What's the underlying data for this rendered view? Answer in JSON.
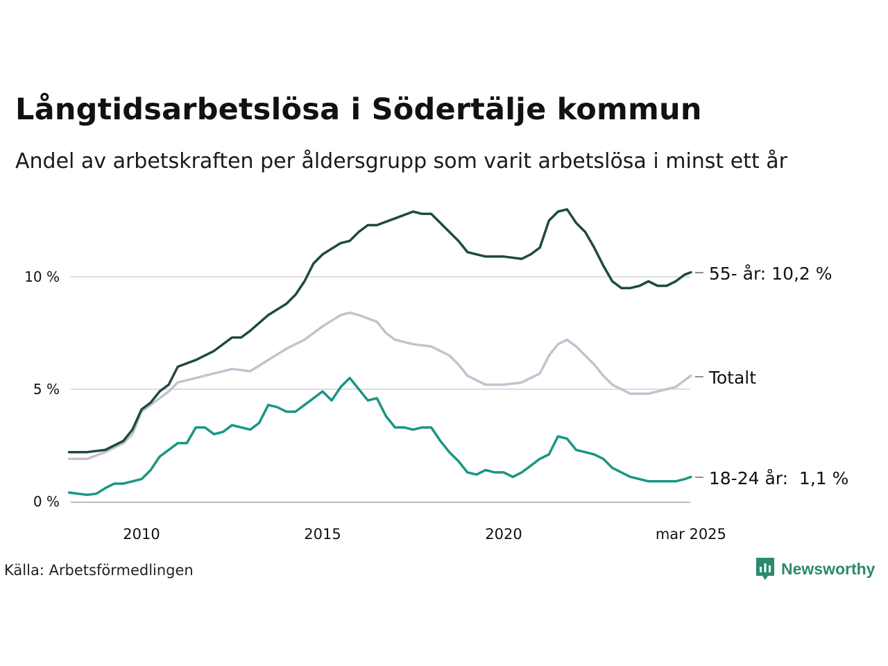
{
  "title": "Långtidsarbetslösa i Södertälje kommun",
  "subtitle": "Andel av arbetskraften per åldersgrupp som varit arbetslösa i minst ett år",
  "source": "Källa: Arbetsförmedlingen",
  "brand": "Newsworthy",
  "chart_data": {
    "type": "line",
    "x_ticks": [
      "2010",
      "2015",
      "2020",
      "mar 2025"
    ],
    "y_ticks": [
      "0 %",
      "5 %",
      "10 %"
    ],
    "ylim": [
      0,
      13.5
    ],
    "xlim": [
      2008.0,
      2025.17
    ],
    "grid": true,
    "series": [
      {
        "name": "55- år",
        "end_label": "55- år: 10,2 %",
        "color": "#1f4a40",
        "points": [
          [
            2008.0,
            2.2
          ],
          [
            2008.5,
            2.2
          ],
          [
            2009.0,
            2.3
          ],
          [
            2009.5,
            2.7
          ],
          [
            2009.75,
            3.2
          ],
          [
            2010.0,
            4.1
          ],
          [
            2010.25,
            4.4
          ],
          [
            2010.5,
            4.9
          ],
          [
            2010.75,
            5.2
          ],
          [
            2011.0,
            6.0
          ],
          [
            2011.5,
            6.3
          ],
          [
            2012.0,
            6.7
          ],
          [
            2012.5,
            7.3
          ],
          [
            2012.75,
            7.3
          ],
          [
            2013.0,
            7.6
          ],
          [
            2013.5,
            8.3
          ],
          [
            2014.0,
            8.8
          ],
          [
            2014.25,
            9.2
          ],
          [
            2014.5,
            9.8
          ],
          [
            2014.75,
            10.6
          ],
          [
            2015.0,
            11.0
          ],
          [
            2015.5,
            11.5
          ],
          [
            2015.75,
            11.6
          ],
          [
            2016.0,
            12.0
          ],
          [
            2016.25,
            12.3
          ],
          [
            2016.5,
            12.3
          ],
          [
            2017.0,
            12.6
          ],
          [
            2017.5,
            12.9
          ],
          [
            2017.75,
            12.8
          ],
          [
            2018.0,
            12.8
          ],
          [
            2018.5,
            12.0
          ],
          [
            2018.75,
            11.6
          ],
          [
            2019.0,
            11.1
          ],
          [
            2019.5,
            10.9
          ],
          [
            2020.0,
            10.9
          ],
          [
            2020.5,
            10.8
          ],
          [
            2020.75,
            11.0
          ],
          [
            2021.0,
            11.3
          ],
          [
            2021.25,
            12.5
          ],
          [
            2021.5,
            12.9
          ],
          [
            2021.75,
            13.0
          ],
          [
            2022.0,
            12.4
          ],
          [
            2022.25,
            12.0
          ],
          [
            2022.5,
            11.3
          ],
          [
            2022.75,
            10.5
          ],
          [
            2023.0,
            9.8
          ],
          [
            2023.25,
            9.5
          ],
          [
            2023.5,
            9.5
          ],
          [
            2023.75,
            9.6
          ],
          [
            2024.0,
            9.8
          ],
          [
            2024.25,
            9.6
          ],
          [
            2024.5,
            9.6
          ],
          [
            2024.75,
            9.8
          ],
          [
            2025.0,
            10.1
          ],
          [
            2025.17,
            10.2
          ]
        ]
      },
      {
        "name": "Totalt",
        "end_label": "Totalt",
        "color": "#c3c2cf",
        "points": [
          [
            2008.0,
            1.9
          ],
          [
            2008.5,
            1.9
          ],
          [
            2009.0,
            2.2
          ],
          [
            2009.5,
            2.6
          ],
          [
            2009.75,
            3.0
          ],
          [
            2010.0,
            4.0
          ],
          [
            2010.5,
            4.6
          ],
          [
            2010.75,
            4.9
          ],
          [
            2011.0,
            5.3
          ],
          [
            2011.5,
            5.5
          ],
          [
            2012.0,
            5.7
          ],
          [
            2012.5,
            5.9
          ],
          [
            2013.0,
            5.8
          ],
          [
            2013.5,
            6.3
          ],
          [
            2014.0,
            6.8
          ],
          [
            2014.5,
            7.2
          ],
          [
            2015.0,
            7.8
          ],
          [
            2015.5,
            8.3
          ],
          [
            2015.75,
            8.4
          ],
          [
            2016.0,
            8.3
          ],
          [
            2016.5,
            8.0
          ],
          [
            2016.75,
            7.5
          ],
          [
            2017.0,
            7.2
          ],
          [
            2017.5,
            7.0
          ],
          [
            2018.0,
            6.9
          ],
          [
            2018.5,
            6.5
          ],
          [
            2018.75,
            6.1
          ],
          [
            2019.0,
            5.6
          ],
          [
            2019.5,
            5.2
          ],
          [
            2020.0,
            5.2
          ],
          [
            2020.5,
            5.3
          ],
          [
            2021.0,
            5.7
          ],
          [
            2021.25,
            6.5
          ],
          [
            2021.5,
            7.0
          ],
          [
            2021.75,
            7.2
          ],
          [
            2022.0,
            6.9
          ],
          [
            2022.5,
            6.1
          ],
          [
            2022.75,
            5.6
          ],
          [
            2023.0,
            5.2
          ],
          [
            2023.5,
            4.8
          ],
          [
            2024.0,
            4.8
          ],
          [
            2024.5,
            5.0
          ],
          [
            2024.75,
            5.1
          ],
          [
            2025.0,
            5.4
          ],
          [
            2025.17,
            5.6
          ]
        ]
      },
      {
        "name": "18-24 år",
        "end_label": "18-24 år:  1,1 %",
        "color": "#1a9583",
        "points": [
          [
            2008.0,
            0.4
          ],
          [
            2008.5,
            0.3
          ],
          [
            2008.75,
            0.35
          ],
          [
            2009.0,
            0.6
          ],
          [
            2009.25,
            0.8
          ],
          [
            2009.5,
            0.8
          ],
          [
            2010.0,
            1.0
          ],
          [
            2010.25,
            1.4
          ],
          [
            2010.5,
            2.0
          ],
          [
            2010.75,
            2.3
          ],
          [
            2011.0,
            2.6
          ],
          [
            2011.25,
            2.6
          ],
          [
            2011.5,
            3.3
          ],
          [
            2011.75,
            3.3
          ],
          [
            2012.0,
            3.0
          ],
          [
            2012.25,
            3.1
          ],
          [
            2012.5,
            3.4
          ],
          [
            2012.75,
            3.3
          ],
          [
            2013.0,
            3.2
          ],
          [
            2013.25,
            3.5
          ],
          [
            2013.5,
            4.3
          ],
          [
            2013.75,
            4.2
          ],
          [
            2014.0,
            4.0
          ],
          [
            2014.25,
            4.0
          ],
          [
            2014.5,
            4.3
          ],
          [
            2014.75,
            4.6
          ],
          [
            2015.0,
            4.9
          ],
          [
            2015.25,
            4.5
          ],
          [
            2015.5,
            5.1
          ],
          [
            2015.75,
            5.5
          ],
          [
            2016.0,
            5.0
          ],
          [
            2016.25,
            4.5
          ],
          [
            2016.5,
            4.6
          ],
          [
            2016.75,
            3.8
          ],
          [
            2017.0,
            3.3
          ],
          [
            2017.25,
            3.3
          ],
          [
            2017.5,
            3.2
          ],
          [
            2017.75,
            3.3
          ],
          [
            2018.0,
            3.3
          ],
          [
            2018.25,
            2.7
          ],
          [
            2018.5,
            2.2
          ],
          [
            2018.75,
            1.8
          ],
          [
            2019.0,
            1.3
          ],
          [
            2019.25,
            1.2
          ],
          [
            2019.5,
            1.4
          ],
          [
            2019.75,
            1.3
          ],
          [
            2020.0,
            1.3
          ],
          [
            2020.25,
            1.1
          ],
          [
            2020.5,
            1.3
          ],
          [
            2020.75,
            1.6
          ],
          [
            2021.0,
            1.9
          ],
          [
            2021.25,
            2.1
          ],
          [
            2021.5,
            2.9
          ],
          [
            2021.75,
            2.8
          ],
          [
            2022.0,
            2.3
          ],
          [
            2022.25,
            2.2
          ],
          [
            2022.5,
            2.1
          ],
          [
            2022.75,
            1.9
          ],
          [
            2023.0,
            1.5
          ],
          [
            2023.25,
            1.3
          ],
          [
            2023.5,
            1.1
          ],
          [
            2023.75,
            1.0
          ],
          [
            2024.0,
            0.9
          ],
          [
            2024.25,
            0.9
          ],
          [
            2024.5,
            0.9
          ],
          [
            2024.75,
            0.9
          ],
          [
            2025.0,
            1.0
          ],
          [
            2025.17,
            1.1
          ]
        ]
      }
    ]
  }
}
